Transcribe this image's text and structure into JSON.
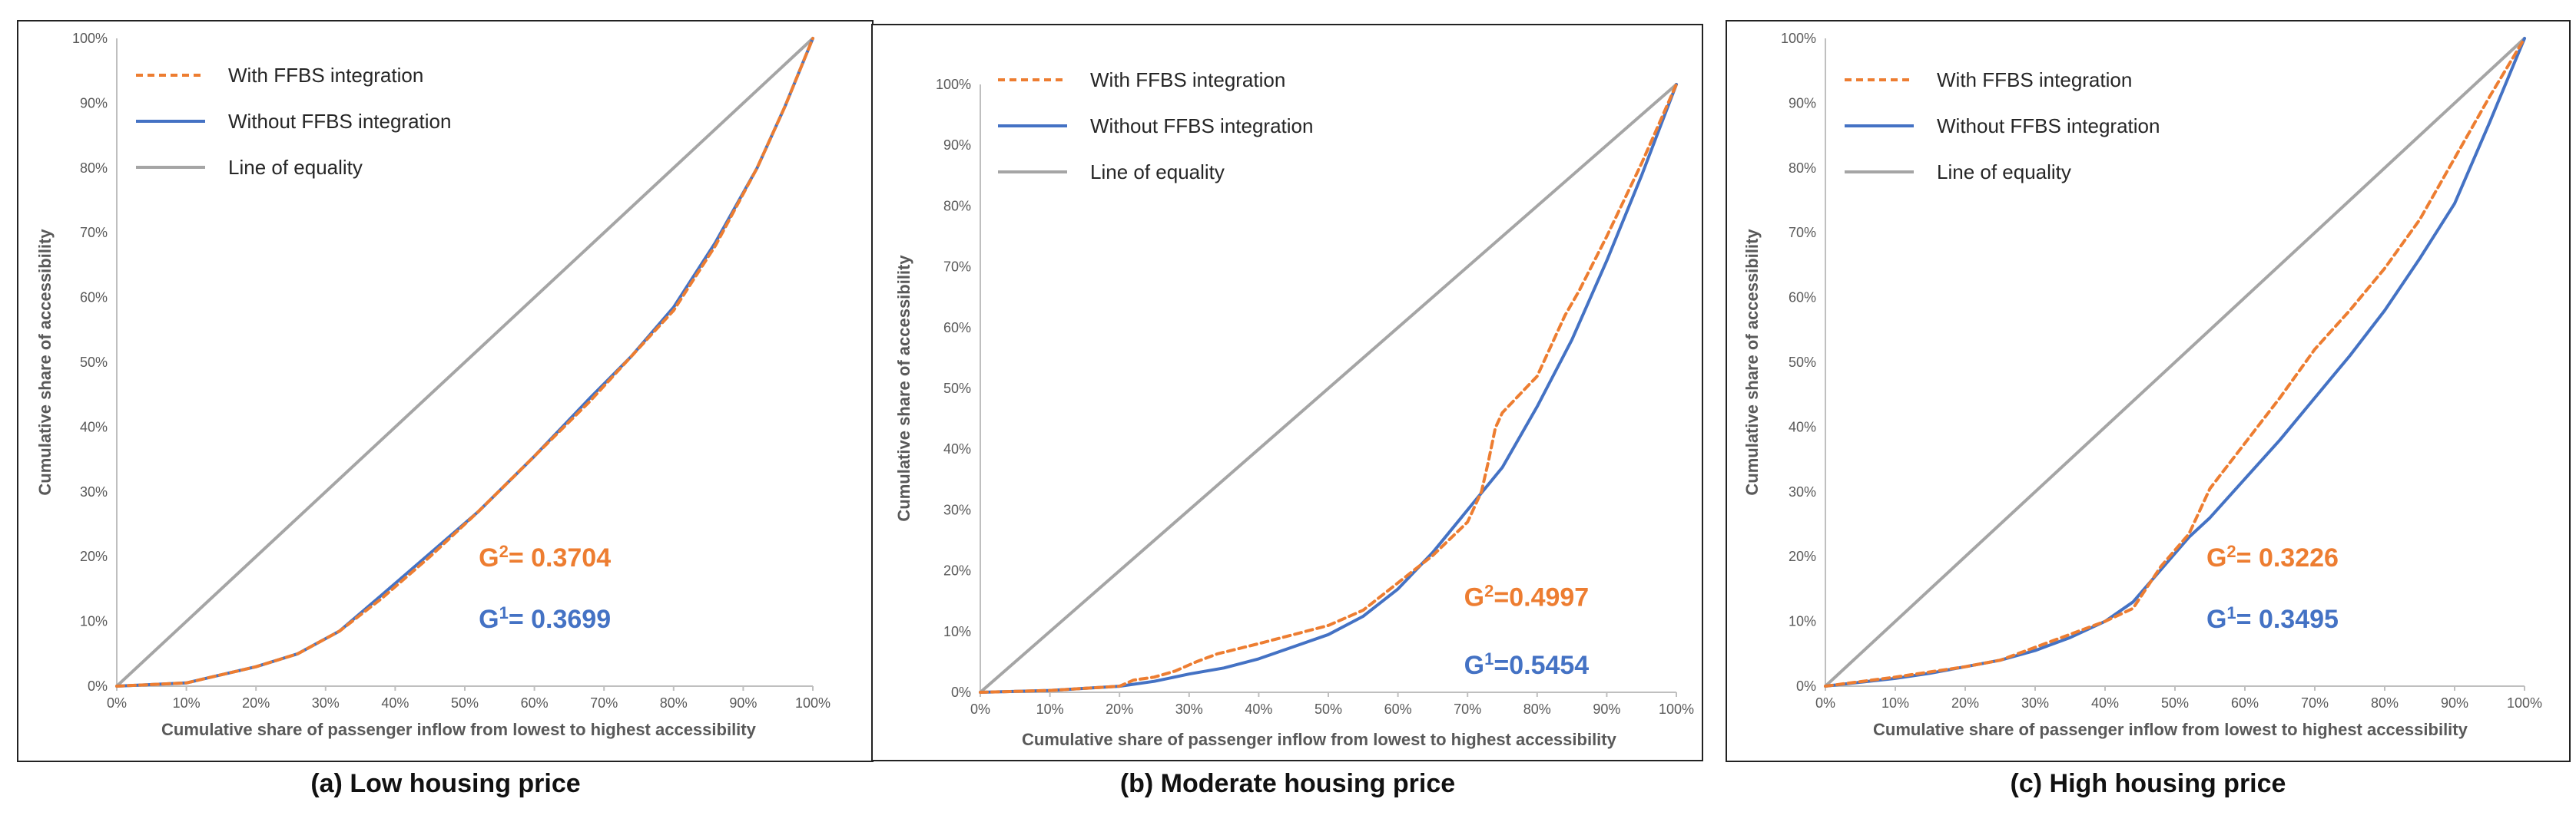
{
  "chart_data": [
    {
      "type": "line",
      "panel": "a",
      "caption": "(a) Low housing price",
      "xlabel": "Cumulative share of passenger inflow from lowest to highest accessibility",
      "ylabel": "Cumulative share of accessibility",
      "xlim": [
        0,
        100
      ],
      "ylim": [
        0,
        100
      ],
      "x_ticks": [
        "0%",
        "10%",
        "20%",
        "30%",
        "40%",
        "50%",
        "60%",
        "70%",
        "80%",
        "90%",
        "100%"
      ],
      "y_ticks": [
        "0%",
        "10%",
        "20%",
        "30%",
        "40%",
        "50%",
        "60%",
        "70%",
        "80%",
        "90%",
        "100%"
      ],
      "legend": [
        "With FFBS integration",
        "Without FFBS integration",
        "Line of equality"
      ],
      "series": [
        {
          "name": "With FFBS integration",
          "color": "#ED7D31",
          "dashed": true,
          "x": [
            0,
            10,
            14,
            20,
            26,
            32,
            38,
            45,
            52,
            60,
            68,
            74,
            80,
            86,
            92,
            96,
            100
          ],
          "y": [
            0,
            0.5,
            1.5,
            3,
            5,
            8.5,
            13.5,
            20,
            27,
            35.5,
            44,
            51,
            58,
            68,
            80,
            89.5,
            100
          ]
        },
        {
          "name": "Without FFBS integration",
          "color": "#4472C4",
          "dashed": false,
          "x": [
            0,
            10,
            14,
            20,
            26,
            32,
            38,
            45,
            52,
            60,
            68,
            74,
            80,
            86,
            92,
            96,
            100
          ],
          "y": [
            0,
            0.5,
            1.5,
            3,
            5,
            8.5,
            14,
            20.5,
            27,
            35.5,
            44.5,
            51,
            58.5,
            68.5,
            80,
            89.5,
            100
          ]
        },
        {
          "name": "Line of equality",
          "color": "#A5A5A5",
          "dashed": false,
          "x": [
            0,
            100
          ],
          "y": [
            0,
            100
          ]
        }
      ],
      "annotations": [
        {
          "prefix": "G",
          "sup": "2",
          "text": "= 0.3704",
          "color": "#ED7D31",
          "x": 52,
          "y": 18.5
        },
        {
          "prefix": "G",
          "sup": "1",
          "text": "= 0.3699",
          "color": "#4472C4",
          "x": 52,
          "y": 9
        }
      ]
    },
    {
      "type": "line",
      "panel": "b",
      "caption": "(b) Moderate housing price",
      "xlabel": "Cumulative share of passenger inflow from lowest to highest accessibility",
      "ylabel": "Cumulative share of accessibility",
      "xlim": [
        0,
        100
      ],
      "ylim": [
        0,
        100
      ],
      "x_ticks": [
        "0%",
        "10%",
        "20%",
        "30%",
        "40%",
        "50%",
        "60%",
        "70%",
        "80%",
        "90%",
        "100%"
      ],
      "y_ticks": [
        "0%",
        "10%",
        "20%",
        "30%",
        "40%",
        "50%",
        "60%",
        "70%",
        "80%",
        "90%",
        "100%"
      ],
      "legend": [
        "With FFBS integration",
        "Without FFBS integration",
        "Line of equality"
      ],
      "series": [
        {
          "name": "With FFBS integration",
          "color": "#ED7D31",
          "dashed": true,
          "x": [
            0,
            10,
            20,
            22,
            25,
            28,
            31,
            34,
            40,
            45,
            50,
            55,
            60,
            65,
            70,
            72,
            73,
            74,
            75,
            80,
            82,
            84,
            86,
            90,
            95,
            100
          ],
          "y": [
            0,
            0.3,
            1,
            2,
            2.5,
            3.5,
            5,
            6.3,
            8,
            9.5,
            11,
            13.5,
            18,
            22.5,
            28,
            33,
            38,
            43.5,
            46,
            52,
            57,
            62,
            66,
            75,
            87,
            100
          ]
        },
        {
          "name": "Without FFBS integration",
          "color": "#4472C4",
          "dashed": false,
          "x": [
            0,
            10,
            20,
            25,
            30,
            35,
            40,
            45,
            50,
            55,
            60,
            65,
            70,
            75,
            80,
            85,
            90,
            95,
            100
          ],
          "y": [
            0,
            0.3,
            1,
            1.8,
            3,
            4,
            5.5,
            7.5,
            9.5,
            12.5,
            17,
            23,
            30,
            37,
            47,
            58,
            71,
            85,
            100
          ]
        },
        {
          "name": "Line of equality",
          "color": "#A5A5A5",
          "dashed": false,
          "x": [
            0,
            100
          ],
          "y": [
            0,
            100
          ]
        }
      ],
      "annotations": [
        {
          "prefix": "G",
          "sup": "2",
          "text": "=0.4997",
          "color": "#ED7D31",
          "x": 69.5,
          "y": 14.2
        },
        {
          "prefix": "G",
          "sup": "1",
          "text": "=0.5454",
          "color": "#4472C4",
          "x": 69.5,
          "y": 3
        }
      ]
    },
    {
      "type": "line",
      "panel": "c",
      "caption": "(c) High housing price",
      "xlabel": "Cumulative share of passenger inflow from lowest to highest accessibility",
      "ylabel": "Cumulative share of accessibility",
      "xlim": [
        0,
        100
      ],
      "ylim": [
        0,
        100
      ],
      "x_ticks": [
        "0%",
        "10%",
        "20%",
        "30%",
        "40%",
        "50%",
        "60%",
        "70%",
        "80%",
        "90%",
        "100%"
      ],
      "y_ticks": [
        "0%",
        "10%",
        "20%",
        "30%",
        "40%",
        "50%",
        "60%",
        "70%",
        "80%",
        "90%",
        "100%"
      ],
      "legend": [
        "With FFBS integration",
        "Without FFBS integration",
        "Line of equality"
      ],
      "series": [
        {
          "name": "With FFBS integration",
          "color": "#ED7D31",
          "dashed": true,
          "x": [
            0,
            5,
            10,
            15,
            20,
            25,
            30,
            35,
            40,
            44,
            48,
            52,
            55,
            60,
            65,
            70,
            75,
            80,
            85,
            90,
            95,
            100
          ],
          "y": [
            0,
            0.7,
            1.4,
            2.2,
            3,
            4,
            6,
            8,
            10,
            12,
            18.5,
            23.5,
            30.5,
            37.5,
            44.5,
            52,
            58,
            64.5,
            72,
            81.5,
            91,
            100
          ]
        },
        {
          "name": "Without FFBS integration",
          "color": "#4472C4",
          "dashed": false,
          "x": [
            0,
            5,
            10,
            15,
            20,
            25,
            30,
            35,
            40,
            44,
            48,
            52,
            55,
            60,
            65,
            70,
            75,
            80,
            85,
            90,
            95,
            100
          ],
          "y": [
            0,
            0.6,
            1.2,
            2,
            3,
            4,
            5.5,
            7.5,
            10,
            13,
            18,
            23,
            26,
            32,
            38,
            44.5,
            51,
            58,
            66,
            74.5,
            87,
            100
          ]
        },
        {
          "name": "Line of equality",
          "color": "#A5A5A5",
          "dashed": false,
          "x": [
            0,
            100
          ],
          "y": [
            0,
            100
          ]
        }
      ],
      "annotations": [
        {
          "prefix": "G",
          "sup": "2",
          "text": "= 0.3226",
          "color": "#ED7D31",
          "x": 54.5,
          "y": 18.5
        },
        {
          "prefix": "G",
          "sup": "1",
          "text": "= 0.3495",
          "color": "#4472C4",
          "x": 54.5,
          "y": 9
        }
      ]
    }
  ]
}
